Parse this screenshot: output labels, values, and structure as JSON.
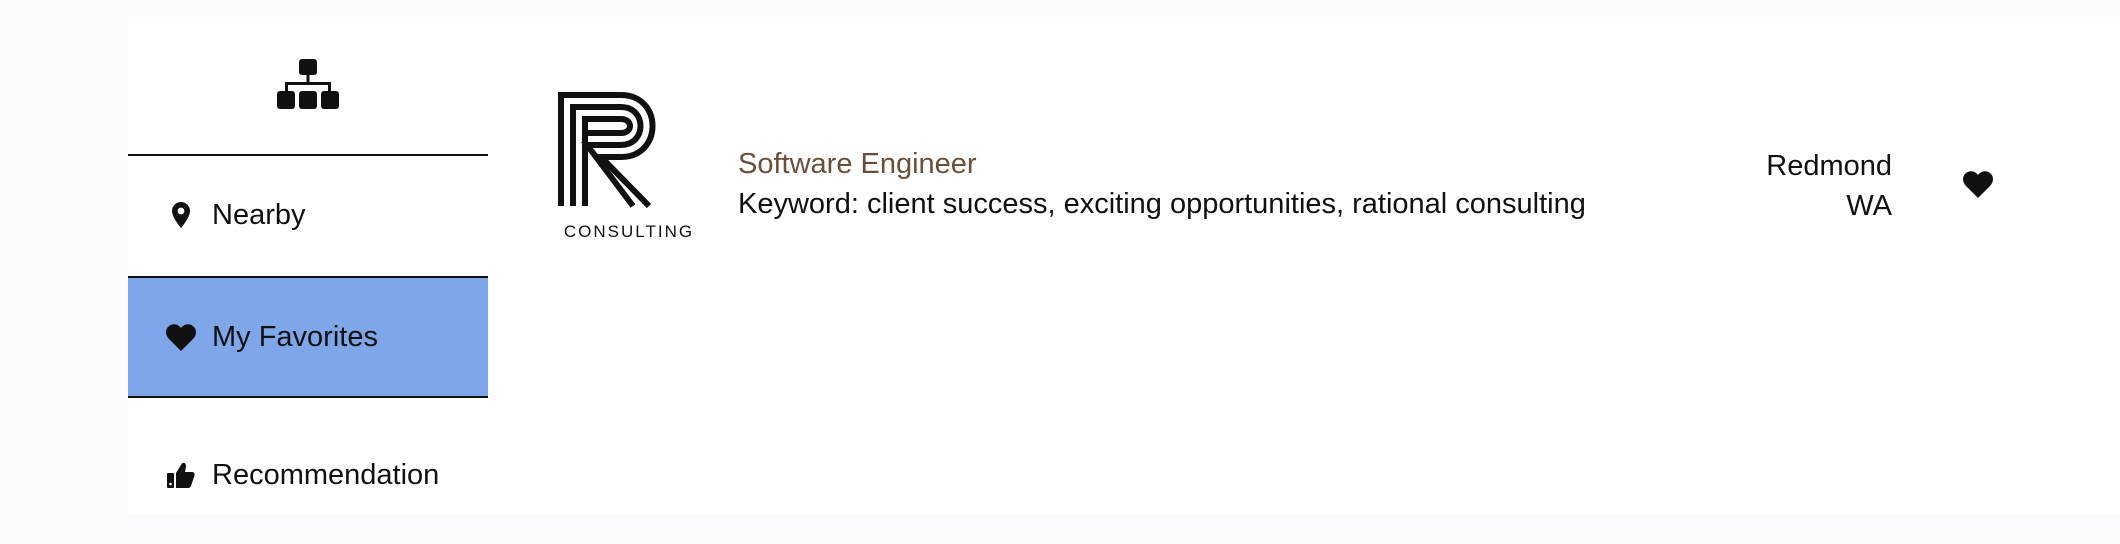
{
  "sidebar": {
    "logo_icon": "sitemap-icon",
    "items": [
      {
        "label": "Nearby",
        "icon": "map-marker-icon"
      },
      {
        "label": "My Favorites",
        "icon": "heart-icon"
      },
      {
        "label": "Recommendation",
        "icon": "thumbs-up-icon"
      }
    ],
    "active_color": "#7fa6e8"
  },
  "job": {
    "logo_text": "CONSULTING",
    "title": "Software Engineer",
    "keywords": "Keyword: client success, exciting opportunities, rational consulting",
    "city": "Redmond",
    "state": "WA",
    "favorite_icon": "heart-icon",
    "title_color": "#6b4f3a"
  }
}
